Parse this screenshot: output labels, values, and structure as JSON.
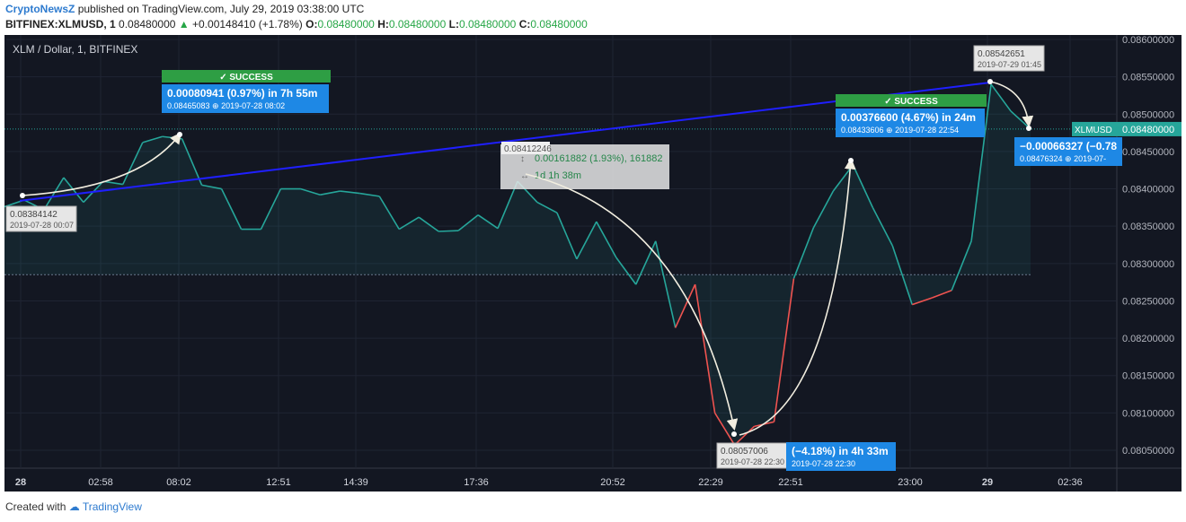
{
  "header": {
    "author": "CryptoNewsZ",
    "published": "published on TradingView.com, July 29, 2019 03:38:00 UTC",
    "symbol": "BITFINEX:XLMUSD, 1",
    "price": "0.08480000",
    "change": "+0.00148410 (+1.78%)",
    "o_label": "O:",
    "o_value": "0.08480000",
    "h_label": "H:",
    "h_value": "0.08480000",
    "l_label": "L:",
    "l_value": "0.08480000",
    "c_label": "C:",
    "c_value": "0.08480000"
  },
  "footer": {
    "created": "Created with",
    "brand": "TradingView"
  },
  "colors": {
    "background": "#131722",
    "line_up": "#26a69a",
    "line_down": "#ef5350",
    "trend": "#1f1fff",
    "callout": "#1e88e5",
    "success": "#2e9e44"
  },
  "chart_data": {
    "type": "line",
    "title": "XLM / Dollar, 1, BITFINEX",
    "price_label": "XLMUSD",
    "last_price": 0.0848,
    "ylim": [
      0.08015,
      0.0861
    ],
    "y_ticks": [
      "0.08050000",
      "0.08100000",
      "0.08150000",
      "0.08200000",
      "0.08250000",
      "0.08300000",
      "0.08350000",
      "0.08400000",
      "0.08450000",
      "0.08500000",
      "0.08550000",
      "0.08600000"
    ],
    "x_ticks": [
      "28",
      "02:58",
      "08:02",
      "12:51",
      "14:39",
      "17:36",
      "20:52",
      "22:29",
      "22:51",
      "23:00",
      "29",
      "02:36"
    ],
    "series": [
      {
        "values": [
          0.08376,
          0.08385,
          0.08372,
          0.08415,
          0.08382,
          0.0841,
          0.08406,
          0.08462,
          0.0847,
          0.08467,
          0.08405,
          0.084,
          0.08346,
          0.08346,
          0.084,
          0.084,
          0.08392,
          0.08397,
          0.08394,
          0.0839,
          0.08346,
          0.08362,
          0.08343,
          0.08344,
          0.08365,
          0.08347,
          0.0841,
          0.08382,
          0.08368,
          0.08306,
          0.08356,
          0.08308,
          0.08272,
          0.0833,
          0.08214,
          0.08272,
          0.081,
          0.08057,
          0.08082,
          0.08088,
          0.0828,
          0.08348,
          0.08397,
          0.08432,
          0.08375,
          0.08324,
          0.08245,
          0.08254,
          0.08264,
          0.0833,
          0.0854,
          0.08504,
          0.0848
        ]
      }
    ],
    "trendline": {
      "from": 0.08384,
      "to": 0.08542
    },
    "markers": [
      {
        "label": "0.08384142",
        "date": "2019-07-28 00:07"
      },
      {
        "label": "0.08542651",
        "date": "2019-07-29 01:45"
      },
      {
        "label": "0.08057006",
        "date": "2019-07-28 22:30"
      },
      {
        "label": "0.08412246"
      }
    ],
    "callouts": [
      {
        "badge": "SUCCESS",
        "main": "0.00080941 (0.97%) in 7h 55m",
        "sub": "0.08465083",
        "date": "2019-07-28  08:02"
      },
      {
        "badge": "SUCCESS",
        "main": "0.00376600 (4.67%) in 24m",
        "sub": "0.08433606",
        "date": "2019-07-28  22:54"
      },
      {
        "main": "(−4.18%) in 4h 33m",
        "date": "2019-07-28  22:30"
      },
      {
        "main": "−0.00066327 (−0.78",
        "sub": "0.08476324",
        "date": "2019-07-"
      }
    ],
    "measure": {
      "change": "0.00161882 (1.93%), 161882",
      "duration": "1d 1h 38m"
    }
  }
}
